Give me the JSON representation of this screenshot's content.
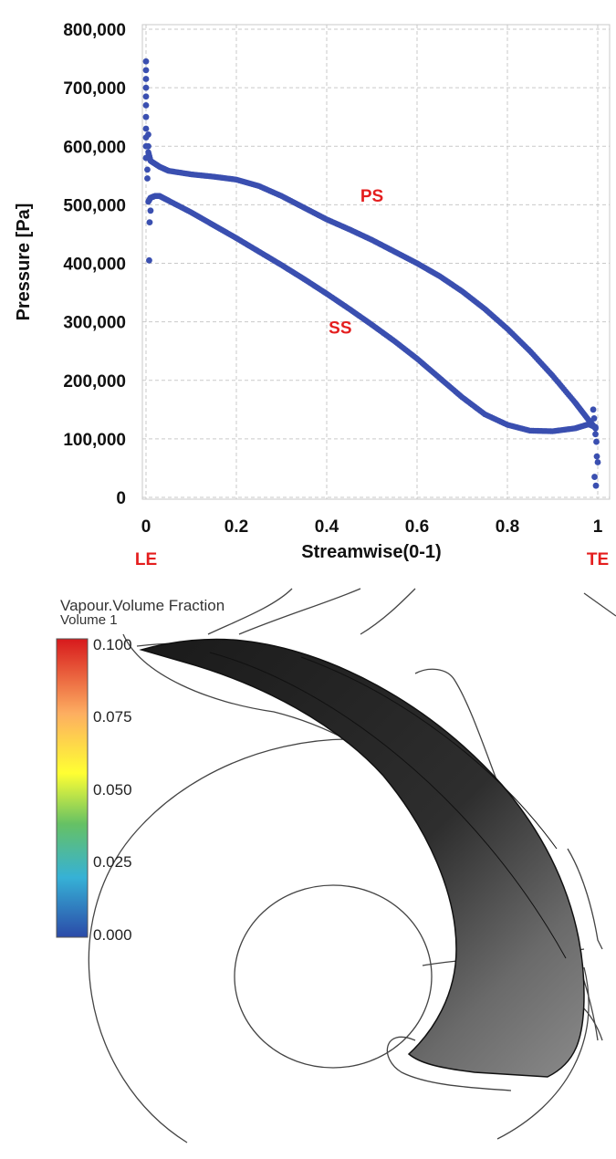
{
  "chart_data": {
    "type": "scatter",
    "xlabel": "Streamwise(0-1)",
    "ylabel": "Pressure  [Pa]",
    "xlim": [
      0,
      1
    ],
    "ylim": [
      0,
      800000
    ],
    "x_ticks": [
      "0",
      "0.2",
      "0.4",
      "0.6",
      "0.8",
      "1"
    ],
    "y_ticks": [
      "800,000",
      "700,000",
      "600,000",
      "500,000",
      "400,000",
      "300,000",
      "200,000",
      "100,000",
      "0"
    ],
    "grid": true,
    "marker_color": "#3a4fb0",
    "annotations": [
      {
        "text": "PS",
        "x": 0.5,
        "y": 505000,
        "color": "#e41e1e"
      },
      {
        "text": "SS",
        "x": 0.43,
        "y": 280000,
        "color": "#e41e1e"
      },
      {
        "text": "LE",
        "x": 0.0,
        "position": "below-axis",
        "color": "#e41e1e"
      },
      {
        "text": "TE",
        "x": 1.0,
        "position": "below-axis",
        "color": "#e41e1e"
      }
    ],
    "series": [
      {
        "name": "PS",
        "x": [
          0.005,
          0.01,
          0.03,
          0.05,
          0.1,
          0.15,
          0.2,
          0.25,
          0.3,
          0.35,
          0.4,
          0.45,
          0.5,
          0.55,
          0.6,
          0.65,
          0.7,
          0.75,
          0.8,
          0.85,
          0.9,
          0.95,
          0.98,
          0.995
        ],
        "y": [
          590000,
          575000,
          565000,
          558000,
          552000,
          548000,
          543000,
          532000,
          515000,
          495000,
          475000,
          458000,
          440000,
          420000,
          400000,
          378000,
          352000,
          322000,
          288000,
          250000,
          208000,
          162000,
          132000,
          118000
        ]
      },
      {
        "name": "SS",
        "x": [
          0.005,
          0.01,
          0.02,
          0.03,
          0.05,
          0.1,
          0.15,
          0.2,
          0.25,
          0.3,
          0.35,
          0.4,
          0.45,
          0.5,
          0.55,
          0.6,
          0.65,
          0.7,
          0.75,
          0.8,
          0.85,
          0.9,
          0.95,
          0.98,
          0.995
        ],
        "y": [
          505000,
          512000,
          515000,
          515000,
          507000,
          487000,
          465000,
          443000,
          420000,
          397000,
          373000,
          348000,
          322000,
          295000,
          267000,
          237000,
          204000,
          171000,
          142000,
          124000,
          114000,
          113000,
          118000,
          125000,
          120000
        ]
      },
      {
        "name": "",
        "x": [
          0.0,
          0.0,
          0.0,
          0.0,
          0.0,
          0.0,
          0.0,
          0.0,
          0.0,
          0.0,
          0.0,
          0.003,
          0.003,
          0.005,
          0.005,
          0.007,
          0.008,
          0.01,
          0.99,
          0.992,
          0.995,
          0.997,
          0.998,
          1.0,
          0.993,
          0.996
        ],
        "y": [
          745000,
          730000,
          715000,
          700000,
          685000,
          670000,
          650000,
          630000,
          615000,
          600000,
          580000,
          560000,
          545000,
          620000,
          600000,
          405000,
          470000,
          490000,
          150000,
          135000,
          108000,
          95000,
          70000,
          60000,
          35000,
          20000
        ]
      }
    ]
  },
  "contour": {
    "title": "Vapour.Volume Fraction",
    "subtitle": "Volume 1",
    "ticks": [
      "0.100",
      "0.075",
      "0.050",
      "0.025",
      "0.000"
    ],
    "colormap": [
      "#d7191c",
      "#fdae61",
      "#ffff33",
      "#66c164",
      "#36b1d6",
      "#2b4aa8"
    ]
  }
}
